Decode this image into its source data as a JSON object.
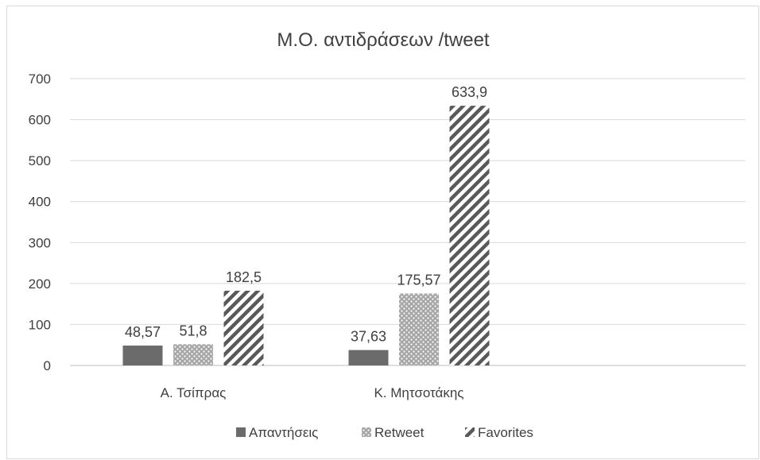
{
  "chart_data": {
    "type": "bar",
    "title": "Μ.Ο. αντιδράσεων /tweet",
    "categories": [
      "Α. Τσίπρας",
      "Κ. Μητσοτάκης"
    ],
    "series": [
      {
        "name": "Απαντήσεις",
        "values": [
          48.57,
          37.63
        ],
        "labels": [
          "48,57",
          "37,63"
        ],
        "pattern": "solid",
        "color": "#6b6b6b"
      },
      {
        "name": "Retweet",
        "values": [
          51.8,
          175.57
        ],
        "labels": [
          "51,8",
          "175,57"
        ],
        "pattern": "dots",
        "color": "#a6a6a6"
      },
      {
        "name": "Favorites",
        "values": [
          182.5,
          633.9
        ],
        "labels": [
          "182,5",
          "633,9"
        ],
        "pattern": "diagonal-stripes",
        "color": "#595959"
      }
    ],
    "yticks": [
      "0",
      "100",
      "200",
      "300",
      "400",
      "500",
      "600",
      "700"
    ],
    "ylim": [
      0,
      700
    ],
    "grid": true,
    "legend_position": "bottom"
  }
}
